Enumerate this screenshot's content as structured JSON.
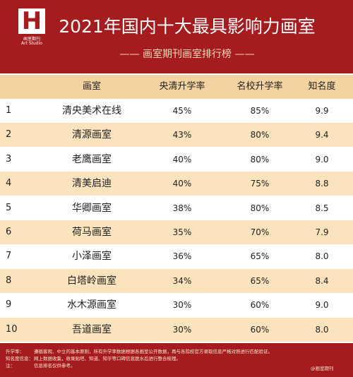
{
  "header": {
    "logo": {
      "mark": "H",
      "name": "画室期刊",
      "name_en": "Art Studio"
    },
    "title": "2021年国内十大最具影响力画室",
    "subtitle": "—— 画室期刊画室排行榜 ——"
  },
  "table": {
    "columns": [
      "",
      "画室",
      "央清升学率",
      "名校升学率",
      "知名度"
    ],
    "rows": [
      [
        "1",
        "清央美术在线",
        "45%",
        "85%",
        "9.9"
      ],
      [
        "2",
        "清源画室",
        "43%",
        "80%",
        "9.4"
      ],
      [
        "3",
        "老鹰画室",
        "40%",
        "80%",
        "9.0"
      ],
      [
        "4",
        "清美启迪",
        "40%",
        "75%",
        "8.8"
      ],
      [
        "5",
        "华卿画室",
        "38%",
        "80%",
        "8.5"
      ],
      [
        "6",
        "荷马画室",
        "35%",
        "70%",
        "7.9"
      ],
      [
        "7",
        "小泽画室",
        "36%",
        "65%",
        "8.0"
      ],
      [
        "8",
        "白塔岭画室",
        "34%",
        "65%",
        "8.4"
      ],
      [
        "9",
        "水木源画室",
        "30%",
        "60%",
        "9.0"
      ],
      [
        "10",
        "吾道画室",
        "30%",
        "60%",
        "8.0"
      ]
    ]
  },
  "footer": {
    "notes": [
      {
        "label": "升学率：",
        "text": "遵循客观、中立的基本原则，所有升学率数据根据各画室公开数据，再与各院校官方录取信息严格对照进行匹配验证。"
      },
      {
        "label": "知名度信息：",
        "text": "网上数据收集，收录贴吧、知道、知乎等口碑信息脱水后进行整合梳理。"
      },
      {
        "label": "注：",
        "text": "信息排名仅供参考。"
      }
    ],
    "credit": "@画室期刊"
  }
}
